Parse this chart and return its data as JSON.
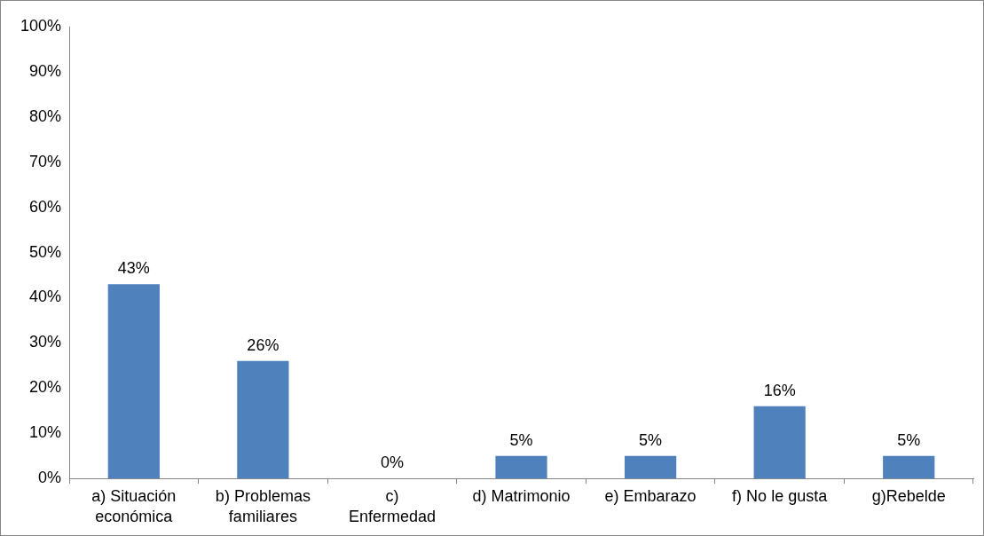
{
  "chart_data": {
    "type": "bar",
    "categories": [
      "a) Situación económica",
      "b) Problemas familiares",
      "c) Enfermedad",
      "d) Matrimonio",
      "e) Embarazo",
      "f) No le gusta",
      "g)Rebelde"
    ],
    "values": [
      43,
      26,
      0,
      5,
      5,
      16,
      5
    ],
    "value_labels": [
      "43%",
      "26%",
      "0%",
      "5%",
      "5%",
      "16%",
      "5%"
    ],
    "color": "#4f81bd",
    "ylim": [
      0,
      100
    ],
    "yticks": [
      {
        "value": 0,
        "label": "0%"
      },
      {
        "value": 10,
        "label": "10%"
      },
      {
        "value": 20,
        "label": "20%"
      },
      {
        "value": 30,
        "label": "30%"
      },
      {
        "value": 40,
        "label": "40%"
      },
      {
        "value": 50,
        "label": "50%"
      },
      {
        "value": 60,
        "label": "60%"
      },
      {
        "value": 70,
        "label": "70%"
      },
      {
        "value": 80,
        "label": "80%"
      },
      {
        "value": 90,
        "label": "90%"
      },
      {
        "value": 100,
        "label": "100%"
      }
    ],
    "grid": false,
    "legend": false
  }
}
